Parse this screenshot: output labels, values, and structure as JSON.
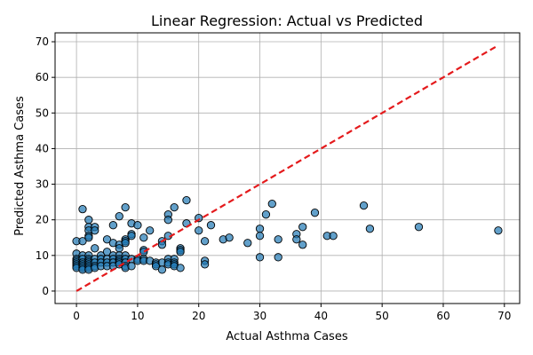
{
  "colors": {
    "point_fill": "#1f77b4",
    "point_edge": "#000000",
    "regression_line": "#e41a1c",
    "grid": "#b0b0b0",
    "axes": "#000000"
  },
  "chart_data": {
    "type": "scatter",
    "title": "Linear Regression: Actual vs Predicted",
    "xlabel": "Actual Asthma Cases",
    "ylabel": "Predicted Asthma Cases",
    "xlim": [
      -3.5,
      72.5
    ],
    "ylim": [
      -3.5,
      72.5
    ],
    "xticks": [
      0,
      10,
      20,
      30,
      40,
      50,
      60,
      70
    ],
    "yticks": [
      0,
      10,
      20,
      30,
      40,
      50,
      60,
      70
    ],
    "grid": true,
    "reference_line": {
      "style": "dashed",
      "from": [
        0,
        0
      ],
      "to": [
        69,
        69
      ]
    },
    "series": [
      {
        "marker": "circle",
        "points": [
          [
            0,
            14
          ],
          [
            0,
            10.5
          ],
          [
            0,
            9
          ],
          [
            0,
            8.5
          ],
          [
            0,
            8
          ],
          [
            0,
            7.5
          ],
          [
            0,
            7
          ],
          [
            0,
            6.5
          ],
          [
            1,
            23
          ],
          [
            1,
            14
          ],
          [
            1,
            10
          ],
          [
            1,
            9
          ],
          [
            1,
            8
          ],
          [
            1,
            7.5
          ],
          [
            1,
            7
          ],
          [
            1,
            6.5
          ],
          [
            1,
            6
          ],
          [
            2,
            20
          ],
          [
            2,
            18
          ],
          [
            2,
            17
          ],
          [
            2,
            15.5
          ],
          [
            2,
            15
          ],
          [
            2,
            10
          ],
          [
            2,
            9
          ],
          [
            2,
            8.5
          ],
          [
            2,
            8
          ],
          [
            2,
            7.5
          ],
          [
            2,
            7
          ],
          [
            2,
            6.5
          ],
          [
            2,
            6
          ],
          [
            3,
            18
          ],
          [
            3,
            17
          ],
          [
            3,
            12
          ],
          [
            3,
            9
          ],
          [
            3,
            8
          ],
          [
            3,
            7
          ],
          [
            3,
            6.5
          ],
          [
            4,
            10
          ],
          [
            4,
            9
          ],
          [
            4,
            8
          ],
          [
            4,
            7
          ],
          [
            5,
            14.5
          ],
          [
            5,
            11
          ],
          [
            5,
            9
          ],
          [
            5,
            8
          ],
          [
            5,
            7
          ],
          [
            6,
            18.5
          ],
          [
            6,
            13.5
          ],
          [
            6,
            10
          ],
          [
            6,
            9
          ],
          [
            6,
            8
          ],
          [
            6,
            7
          ],
          [
            7,
            21
          ],
          [
            7,
            13
          ],
          [
            7,
            12
          ],
          [
            7,
            10
          ],
          [
            7,
            9
          ],
          [
            7,
            8.5
          ],
          [
            7,
            8
          ],
          [
            7,
            7.5
          ],
          [
            8,
            23.5
          ],
          [
            8,
            14.5
          ],
          [
            8,
            14
          ],
          [
            8,
            13.5
          ],
          [
            8,
            10
          ],
          [
            8,
            9
          ],
          [
            8,
            8
          ],
          [
            8,
            7
          ],
          [
            8,
            6.5
          ],
          [
            9,
            19
          ],
          [
            9,
            16
          ],
          [
            9,
            15.5
          ],
          [
            9,
            9
          ],
          [
            9,
            7
          ],
          [
            10,
            18.5
          ],
          [
            10,
            9
          ],
          [
            10,
            8.5
          ],
          [
            11,
            15
          ],
          [
            11,
            11.5
          ],
          [
            11,
            11
          ],
          [
            11,
            9
          ],
          [
            11,
            8.5
          ],
          [
            12,
            17
          ],
          [
            12,
            8.5
          ],
          [
            13,
            8
          ],
          [
            13,
            7.5
          ],
          [
            13,
            7
          ],
          [
            14,
            14
          ],
          [
            14,
            13
          ],
          [
            14,
            8
          ],
          [
            14,
            6
          ],
          [
            15,
            21.5
          ],
          [
            15,
            20
          ],
          [
            15,
            15.5
          ],
          [
            15,
            9
          ],
          [
            15,
            8
          ],
          [
            15,
            7.5
          ],
          [
            16,
            23.5
          ],
          [
            16,
            9
          ],
          [
            16,
            8
          ],
          [
            16,
            7.5
          ],
          [
            16,
            7
          ],
          [
            17,
            12
          ],
          [
            17,
            11.5
          ],
          [
            17,
            11
          ],
          [
            17,
            6.5
          ],
          [
            18,
            25.5
          ],
          [
            18,
            19
          ],
          [
            20,
            20.5
          ],
          [
            20,
            17
          ],
          [
            21,
            14
          ],
          [
            21,
            8.5
          ],
          [
            21,
            7.5
          ],
          [
            22,
            18.5
          ],
          [
            24,
            14.5
          ],
          [
            25,
            15
          ],
          [
            28,
            13.5
          ],
          [
            30,
            17.5
          ],
          [
            30,
            15.5
          ],
          [
            30,
            9.5
          ],
          [
            31,
            21.5
          ],
          [
            32,
            24.5
          ],
          [
            33,
            14.5
          ],
          [
            33,
            9.5
          ],
          [
            36,
            16
          ],
          [
            36,
            14.5
          ],
          [
            37,
            18
          ],
          [
            37,
            13
          ],
          [
            39,
            22
          ],
          [
            41,
            15.5
          ],
          [
            42,
            15.5
          ],
          [
            47,
            24
          ],
          [
            48,
            17.5
          ],
          [
            56,
            18
          ],
          [
            69,
            17
          ]
        ]
      }
    ]
  }
}
